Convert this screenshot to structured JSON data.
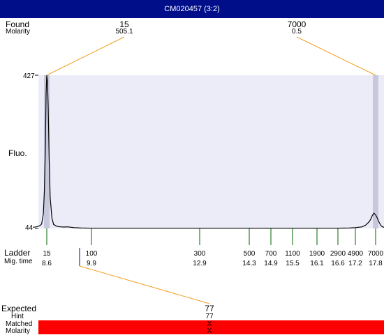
{
  "window": {
    "title": "CM020457 (3:2)"
  },
  "labels": {
    "found": "Found",
    "molarity": "Molarity",
    "fluo": "Fluo.",
    "ladder": "Ladder",
    "mig_time": "Mig. time",
    "expected": "Expected",
    "hint": "Hint",
    "matched": "Matched",
    "molarity_bottom": "Molarity"
  },
  "found_peaks": [
    {
      "size": "15",
      "molarity": "505.1",
      "mig_time": 8.6
    },
    {
      "size": "7000",
      "molarity": "0.5",
      "mig_time": 17.8
    }
  ],
  "expected": {
    "value": "77",
    "hint": "77",
    "matched": "X",
    "molarity": "X",
    "mig_time": 9.9
  },
  "colors": {
    "title_bar": "#000e8a",
    "plot_bg": "#ececf8",
    "marker_band": "#c8c8dc",
    "connector": "#f0a020",
    "ladder_tick": "#006400",
    "expected_tick": "#0000aa",
    "matched_bar": "#ff0000",
    "trace": "#000000"
  },
  "chart_data": {
    "type": "line",
    "title": "",
    "xlabel": "Mig. time",
    "ylabel": "Fluo.",
    "ylim": [
      44,
      427
    ],
    "y_ticks": [
      "427",
      "44"
    ],
    "ladder": [
      {
        "size": "15",
        "time": "8.6",
        "t": 8.6
      },
      {
        "size": "100",
        "time": "9.9",
        "t": 9.9
      },
      {
        "size": "300",
        "time": "12.9",
        "t": 12.9
      },
      {
        "size": "500",
        "time": "14.3",
        "t": 14.3
      },
      {
        "size": "700",
        "time": "14.9",
        "t": 14.9
      },
      {
        "size": "1100",
        "time": "15.5",
        "t": 15.5
      },
      {
        "size": "1900",
        "time": "16.1",
        "t": 16.1
      },
      {
        "size": "2900",
        "time": "16.6",
        "t": 16.6
      },
      {
        "size": "4900",
        "time": "17.2",
        "t": 17.2
      },
      {
        "size": "7000",
        "time": "17.8",
        "t": 17.8
      }
    ],
    "series": [
      {
        "x": [
          8.2,
          8.3,
          8.4,
          8.45,
          8.5,
          8.53,
          8.56,
          8.58,
          8.6,
          8.62,
          8.64,
          8.67,
          8.7,
          8.75,
          8.8,
          8.9,
          9.0,
          9.1,
          9.2,
          9.4,
          9.6,
          10.0,
          11.0,
          12.0,
          13.0,
          14.0,
          15.0,
          16.0,
          16.5,
          17.0,
          17.2,
          17.4,
          17.5,
          17.6,
          17.65,
          17.7,
          17.75,
          17.8,
          17.85,
          17.9,
          17.95,
          18.0,
          18.05
        ],
        "y": [
          47,
          48,
          51,
          55,
          80,
          140,
          250,
          380,
          427,
          410,
          350,
          220,
          120,
          70,
          54,
          49,
          48,
          47.5,
          48,
          46,
          45,
          44.5,
          44.5,
          44.5,
          44.5,
          44.5,
          44.5,
          44.5,
          44.5,
          45,
          46,
          48,
          52,
          60,
          66,
          76,
          82,
          78,
          70,
          60,
          52,
          48,
          47
        ]
      }
    ]
  }
}
